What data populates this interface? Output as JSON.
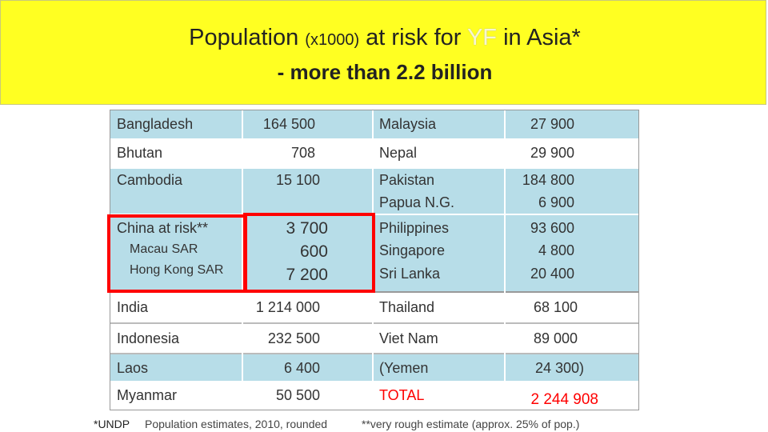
{
  "title": {
    "prefix": "Population",
    "unit": "(x1000)",
    "middle": "at risk for",
    "yf": "YF",
    "suffix": "in Asia*",
    "subtitle": "- more than 2.2 billion"
  },
  "table": {
    "rows": [
      {
        "left": [
          {
            "name": "Bangladesh",
            "value": "164 500"
          }
        ],
        "right": [
          {
            "name": "Malaysia",
            "value": "27 900"
          }
        ]
      },
      {
        "left": [
          {
            "name": "Bhutan",
            "value": "708"
          }
        ],
        "right": [
          {
            "name": "Nepal",
            "value": "29 900"
          }
        ]
      },
      {
        "left": [
          {
            "name": "Cambodia",
            "value": "15 100"
          }
        ],
        "right": [
          {
            "name": "Pakistan",
            "value": "184 800"
          },
          {
            "name": "Papua N.G.",
            "value": "6 900"
          }
        ]
      },
      {
        "left": [
          {
            "name": "China at risk**",
            "value": "3 700"
          },
          {
            "name": "Macau SAR",
            "value": "600"
          },
          {
            "name": "Hong Kong SAR",
            "value": "7 200"
          }
        ],
        "right": [
          {
            "name": "Philippines",
            "value": "93 600"
          },
          {
            "name": "Singapore",
            "value": "4 800"
          },
          {
            "name": "Sri Lanka",
            "value": "20 400"
          }
        ]
      },
      {
        "left": [
          {
            "name": "India",
            "value": "1 214 000"
          }
        ],
        "right": [
          {
            "name": "Thailand",
            "value": "68 100"
          }
        ]
      },
      {
        "left": [
          {
            "name": "Indonesia",
            "value": "232 500"
          }
        ],
        "right": [
          {
            "name": "Viet Nam",
            "value": "89 000"
          }
        ]
      },
      {
        "left": [
          {
            "name": "Laos",
            "value": "6 400"
          }
        ],
        "right": [
          {
            "name": "(Yemen",
            "value": "24 300)"
          }
        ]
      },
      {
        "left": [
          {
            "name": "Myanmar",
            "value": "50 500"
          }
        ],
        "right": [
          {
            "name": "TOTAL",
            "value": "2 244 908"
          }
        ]
      }
    ]
  },
  "footnotes": {
    "source": "*UNDP",
    "estimate": "Population estimates, 2010, rounded",
    "china_note": "**very rough estimate (approx. 25% of pop.)"
  },
  "colors": {
    "title_band": "#ffff22",
    "row_blue": "#b7dde8",
    "highlight": "#ff0000"
  }
}
